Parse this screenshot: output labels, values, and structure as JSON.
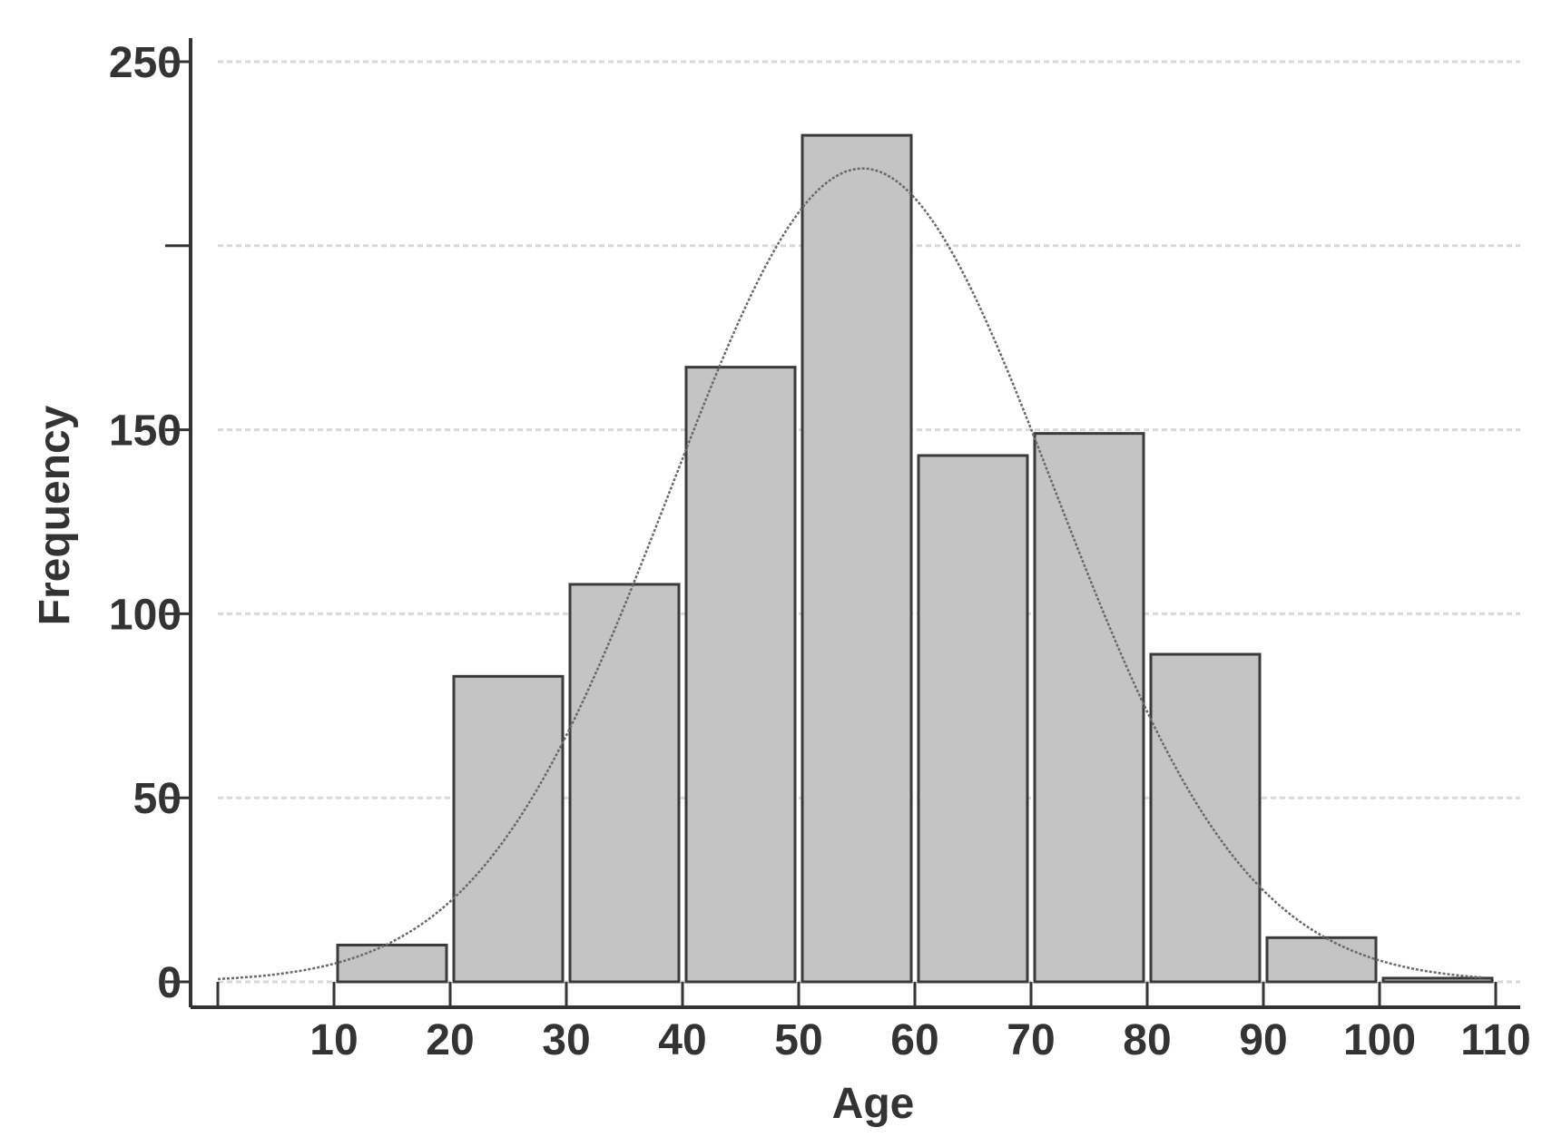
{
  "chart_data": {
    "type": "bar",
    "xlabel": "Age",
    "ylabel": "Frequency",
    "x_ticks": [
      "10",
      "20",
      "30",
      "40",
      "50",
      "60",
      "70",
      "80",
      "90",
      "100",
      "110"
    ],
    "y_ticks": [
      "0",
      "50",
      "100",
      "150",
      "250"
    ],
    "grid_values": [
      0,
      50,
      100,
      150,
      200,
      250
    ],
    "xlim": [
      0,
      112
    ],
    "ylim": [
      0,
      250
    ],
    "bins": [
      {
        "start": 10,
        "end": 20,
        "value": 10
      },
      {
        "start": 20,
        "end": 30,
        "value": 83
      },
      {
        "start": 30,
        "end": 40,
        "value": 108
      },
      {
        "start": 40,
        "end": 50,
        "value": 167
      },
      {
        "start": 50,
        "end": 60,
        "value": 230
      },
      {
        "start": 60,
        "end": 70,
        "value": 143
      },
      {
        "start": 70,
        "end": 80,
        "value": 149
      },
      {
        "start": 80,
        "end": 90,
        "value": 89
      },
      {
        "start": 90,
        "end": 100,
        "value": 12
      },
      {
        "start": 100,
        "end": 110,
        "value": 1
      }
    ],
    "fit_curve": {
      "type": "normal",
      "mean": 55.5,
      "sd": 16.5,
      "peak": 221,
      "x_range": [
        0,
        109
      ]
    },
    "grid": true,
    "colors": {
      "bar_fill": "#c4c4c4",
      "bar_stroke": "#3a3a3a",
      "curve": "#6a6a6a",
      "axis": "#333333",
      "grid": "#d9d9d9"
    }
  }
}
